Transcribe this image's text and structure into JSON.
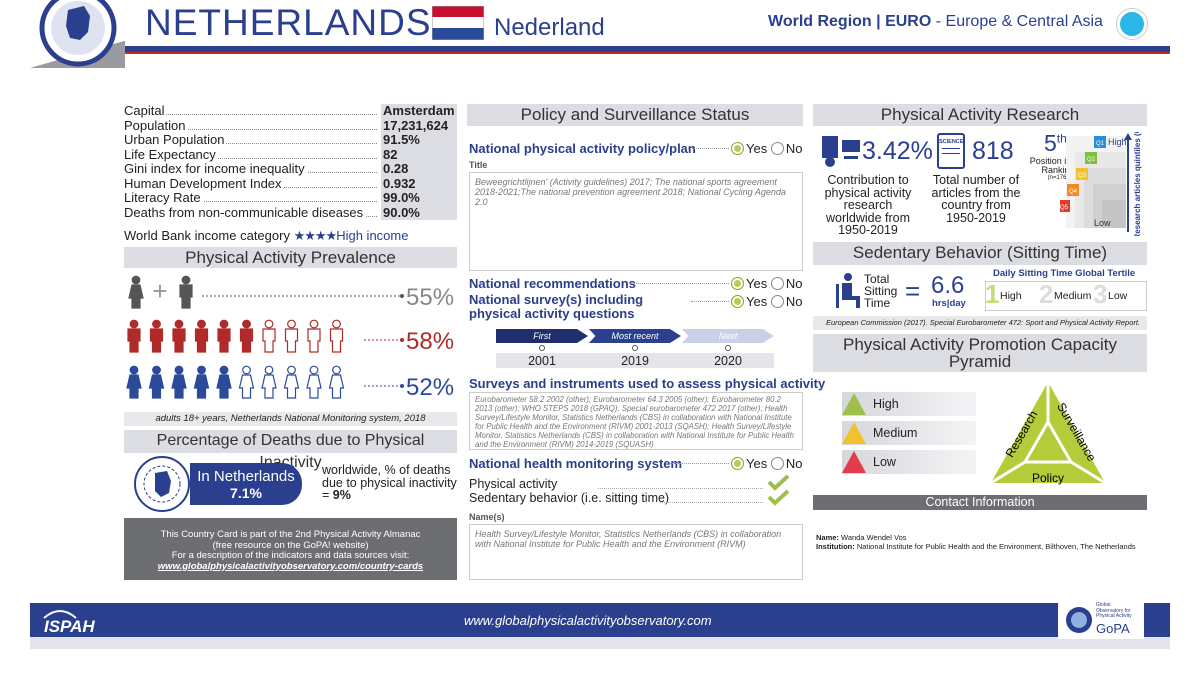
{
  "header": {
    "title": "NETHERLANDS",
    "native_name": "Nederland",
    "region_label": "World Region | EURO",
    "region_name": "- Europe & Central Asia"
  },
  "country_stats": {
    "rows": [
      [
        "Capital",
        "Amsterdam"
      ],
      [
        "Population",
        "17,231,624"
      ],
      [
        "Urban Population",
        "91.5%"
      ],
      [
        "Life Expectancy",
        "82"
      ],
      [
        "Gini index for income inequality",
        "0.28"
      ],
      [
        "Human Development Index",
        "0.932"
      ],
      [
        "Literacy Rate",
        "99.0%"
      ],
      [
        "Deaths from non-communicable diseases",
        "90.0%"
      ]
    ],
    "income_label": "World Bank income category",
    "income_value": "High income"
  },
  "prevalence": {
    "title": "Physical Activity Prevalence",
    "rows": [
      {
        "value": "55%"
      },
      {
        "value": "58%"
      },
      {
        "value": "52%"
      }
    ],
    "note": "adults 18+ years, Netherlands National Monitoring system, 2018"
  },
  "deaths": {
    "title": "Percentage of Deaths due to Physical Inactivity",
    "country_label": "In Netherlands",
    "country_value": "7.1%",
    "world_text": "worldwide, % of deaths due to physical inactivity =",
    "world_value": "9%"
  },
  "almanac": {
    "lines": [
      "This Country Card is part of the 2nd Physical Activity Almanac",
      "(free resource on the GoPA! website)",
      "For a description of the indicators and data sources visit:"
    ],
    "link": "www.globalphysicalactivityobservatory.com/country-cards"
  },
  "policy": {
    "title": "Policy and Surveillance Status",
    "plan": {
      "label": "National physical activity policy/plan",
      "yes": "Yes",
      "no": "No"
    },
    "title_label": "Title",
    "title_text": "Beweegrichtlijnen' (Activity guidelines) 2017; The national sports agreement 2018-2021;The national prevention agreement 2018; National Cycling Agenda 2.0",
    "recommendations": {
      "label": "National recommendations",
      "yes": "Yes",
      "no": "No"
    },
    "survey": {
      "label": "National survey(s) including physical activity questions",
      "yes": "Yes",
      "no": "No"
    },
    "timeline": [
      {
        "label": "First",
        "year": "2001"
      },
      {
        "label": "Most recent",
        "year": "2019"
      },
      {
        "label": "Next",
        "year": "2020"
      }
    ],
    "instruments_title": "Surveys and instruments used to assess physical activity",
    "instruments_text": "Eurobarometer 58.2 2002 (other); Eurobarometer 64.3 2005 (other); Eurobarometer 80.2 2013 (other); WHO STEPS 2018 (GPAQ); Special eurobarometer 472 2017 (other); Health Survey/Lifestyle Monitor, Statistics Netherlands (CBS) in collaboration with National Institute for Public Health and the Environment (RIVM) 2001-2013 (SQASH); Health Survey/Lifestyle Monitor, Statistics Netherlands (CBS) in collaboration with National Institute for Public Health and the Environment (RIVM) 2014-2019 (SQUASH)",
    "monitoring": {
      "label": "National health monitoring system",
      "yes": "Yes",
      "no": "No"
    },
    "monitored": [
      "Physical activity",
      "Sedentary behavior (i.e. sitting time)"
    ],
    "names_label": "Name(s)",
    "names_text": "Health Survey/Lifestyle Monitor, Statistics Netherlands (CBS) in collaboration with National Institute for Public Health and the Environment (RIVM)"
  },
  "research": {
    "title": "Physical Activity Research",
    "share": "3.42%",
    "share_label": "Contribution to physical activity research worldwide from 1950-2019",
    "science_icon": "SCIENCE",
    "articles": "818",
    "articles_label": "Total number of articles from the country from 1950-2019",
    "rank": "5",
    "rank_suffix": "th",
    "rank_label": "Position in the Ranking",
    "rank_n": "(n=176)",
    "quintiles": [
      "Q1",
      "Q2",
      "Q3",
      "Q4",
      "Q5"
    ],
    "high": "High",
    "low": "Low",
    "axis_label": "Research articles quintiles (Q)"
  },
  "sedentary": {
    "title": "Sedentary Behavior (Sitting Time)",
    "label": "Total Sitting Time",
    "equals": "=",
    "value": "6.6",
    "unit": "hrs|day",
    "tertile_title": "Daily Sitting Time Global Tertile",
    "tertiles": [
      {
        "num": "1",
        "label": "High"
      },
      {
        "num": "2",
        "label": "Medium"
      },
      {
        "num": "3",
        "label": "Low"
      }
    ],
    "source": "European Commission (2017). Special Eurobarometer 472: Sport and Physical Activity Report."
  },
  "pyramid": {
    "title": "Physical Activity Promotion Capacity Pyramid",
    "levels": [
      "High",
      "Medium",
      "Low"
    ],
    "sides": [
      "Research",
      "Surveillance",
      "Policy"
    ]
  },
  "contact": {
    "title": "Contact Information",
    "name_label": "Name:",
    "name": "Wanda Wendel Vos",
    "institution_label": "Institution:",
    "institution": "National Institute for Public Health and the Environment, Bilthoven, The Netherlands"
  },
  "footer": {
    "ispah": "ISPAH",
    "url": "www.globalphysicalactivityobservatory.com",
    "gopa_lines": [
      "Global",
      "Observatory for",
      "Physical Activity"
    ],
    "gopa_logo": "GoPA"
  }
}
